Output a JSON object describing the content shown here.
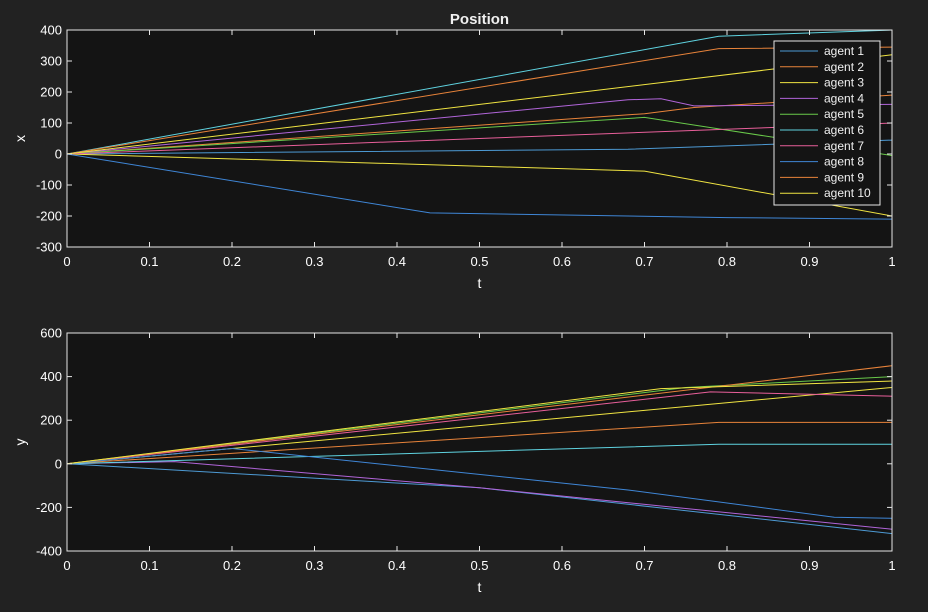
{
  "figure": {
    "background": "#222222",
    "axes_background": "#141414",
    "axis_color": "#e6e6e6"
  },
  "chart_data": [
    {
      "type": "line",
      "title": "Position",
      "xlabel": "t",
      "ylabel": "x",
      "xlim": [
        0,
        1
      ],
      "ylim": [
        -300,
        400
      ],
      "xticks": [
        0,
        0.1,
        0.2,
        0.3,
        0.4,
        0.5,
        0.6,
        0.7,
        0.8,
        0.9,
        1
      ],
      "yticks": [
        -300,
        -200,
        -100,
        0,
        100,
        200,
        300,
        400
      ],
      "grid": false,
      "legend_position": "top-right",
      "series": [
        {
          "name": "agent 1",
          "color": "#4d9ad4",
          "x": [
            0,
            0.68,
            1.0
          ],
          "y": [
            0,
            15,
            45
          ]
        },
        {
          "name": "agent 2",
          "color": "#e8833a",
          "x": [
            0,
            0.7,
            0.76,
            1.0
          ],
          "y": [
            0,
            130,
            150,
            190
          ]
        },
        {
          "name": "agent 3",
          "color": "#f0e442",
          "x": [
            0,
            0.7,
            1.0
          ],
          "y": [
            0,
            -55,
            -200
          ]
        },
        {
          "name": "agent 4",
          "color": "#b165d9",
          "x": [
            0,
            0.68,
            0.72,
            0.76,
            1.0
          ],
          "y": [
            0,
            175,
            178,
            155,
            160
          ]
        },
        {
          "name": "agent 5",
          "color": "#69c94a",
          "x": [
            0,
            0.7,
            1.0
          ],
          "y": [
            0,
            118,
            -5
          ]
        },
        {
          "name": "agent 6",
          "color": "#5fd3e0",
          "x": [
            0,
            0.79,
            1.0
          ],
          "y": [
            0,
            380,
            400
          ]
        },
        {
          "name": "agent 7",
          "color": "#e85f9a",
          "x": [
            0,
            1.0
          ],
          "y": [
            0,
            100
          ]
        },
        {
          "name": "agent 8",
          "color": "#3f86d6",
          "x": [
            0,
            0.44,
            0.8,
            1.0
          ],
          "y": [
            0,
            -190,
            -205,
            -210
          ]
        },
        {
          "name": "agent 9",
          "color": "#e8833a",
          "x": [
            0,
            0.79,
            1.0
          ],
          "y": [
            0,
            340,
            345
          ]
        },
        {
          "name": "agent 10",
          "color": "#f0e442",
          "x": [
            0,
            1.0
          ],
          "y": [
            0,
            320
          ]
        }
      ]
    },
    {
      "type": "line",
      "title": "",
      "xlabel": "t",
      "ylabel": "y",
      "xlim": [
        0,
        1
      ],
      "ylim": [
        -400,
        600
      ],
      "xticks": [
        0,
        0.1,
        0.2,
        0.3,
        0.4,
        0.5,
        0.6,
        0.7,
        0.8,
        0.9,
        1
      ],
      "yticks": [
        -400,
        -200,
        0,
        200,
        400,
        600
      ],
      "grid": false,
      "series": [
        {
          "name": "agent 1",
          "color": "#4d9ad4",
          "x": [
            0,
            0.5,
            1.0
          ],
          "y": [
            0,
            -110,
            -320
          ]
        },
        {
          "name": "agent 2",
          "color": "#e8833a",
          "x": [
            0,
            0.79,
            1.0
          ],
          "y": [
            0,
            190,
            190
          ]
        },
        {
          "name": "agent 3",
          "color": "#f0e442",
          "x": [
            0,
            1.0
          ],
          "y": [
            0,
            350
          ]
        },
        {
          "name": "agent 4",
          "color": "#b165d9",
          "x": [
            0,
            0.13,
            0.5,
            1.0
          ],
          "y": [
            0,
            10,
            -110,
            -300
          ]
        },
        {
          "name": "agent 5",
          "color": "#69c94a",
          "x": [
            0,
            0.75,
            1.0
          ],
          "y": [
            0,
            350,
            400
          ]
        },
        {
          "name": "agent 6",
          "color": "#5fd3e0",
          "x": [
            0,
            0.79,
            1.0
          ],
          "y": [
            0,
            90,
            90
          ]
        },
        {
          "name": "agent 7",
          "color": "#e85f9a",
          "x": [
            0,
            0.78,
            1.0
          ],
          "y": [
            0,
            330,
            310
          ]
        },
        {
          "name": "agent 8",
          "color": "#3f86d6",
          "x": [
            0,
            0.2,
            0.68,
            0.93,
            1.0
          ],
          "y": [
            0,
            70,
            -120,
            -245,
            -250
          ]
        },
        {
          "name": "agent 9",
          "color": "#e8833a",
          "x": [
            0,
            1.0
          ],
          "y": [
            0,
            450
          ]
        },
        {
          "name": "agent 10",
          "color": "#f0e442",
          "x": [
            0,
            0.72,
            1.0
          ],
          "y": [
            0,
            345,
            380
          ]
        }
      ]
    }
  ]
}
